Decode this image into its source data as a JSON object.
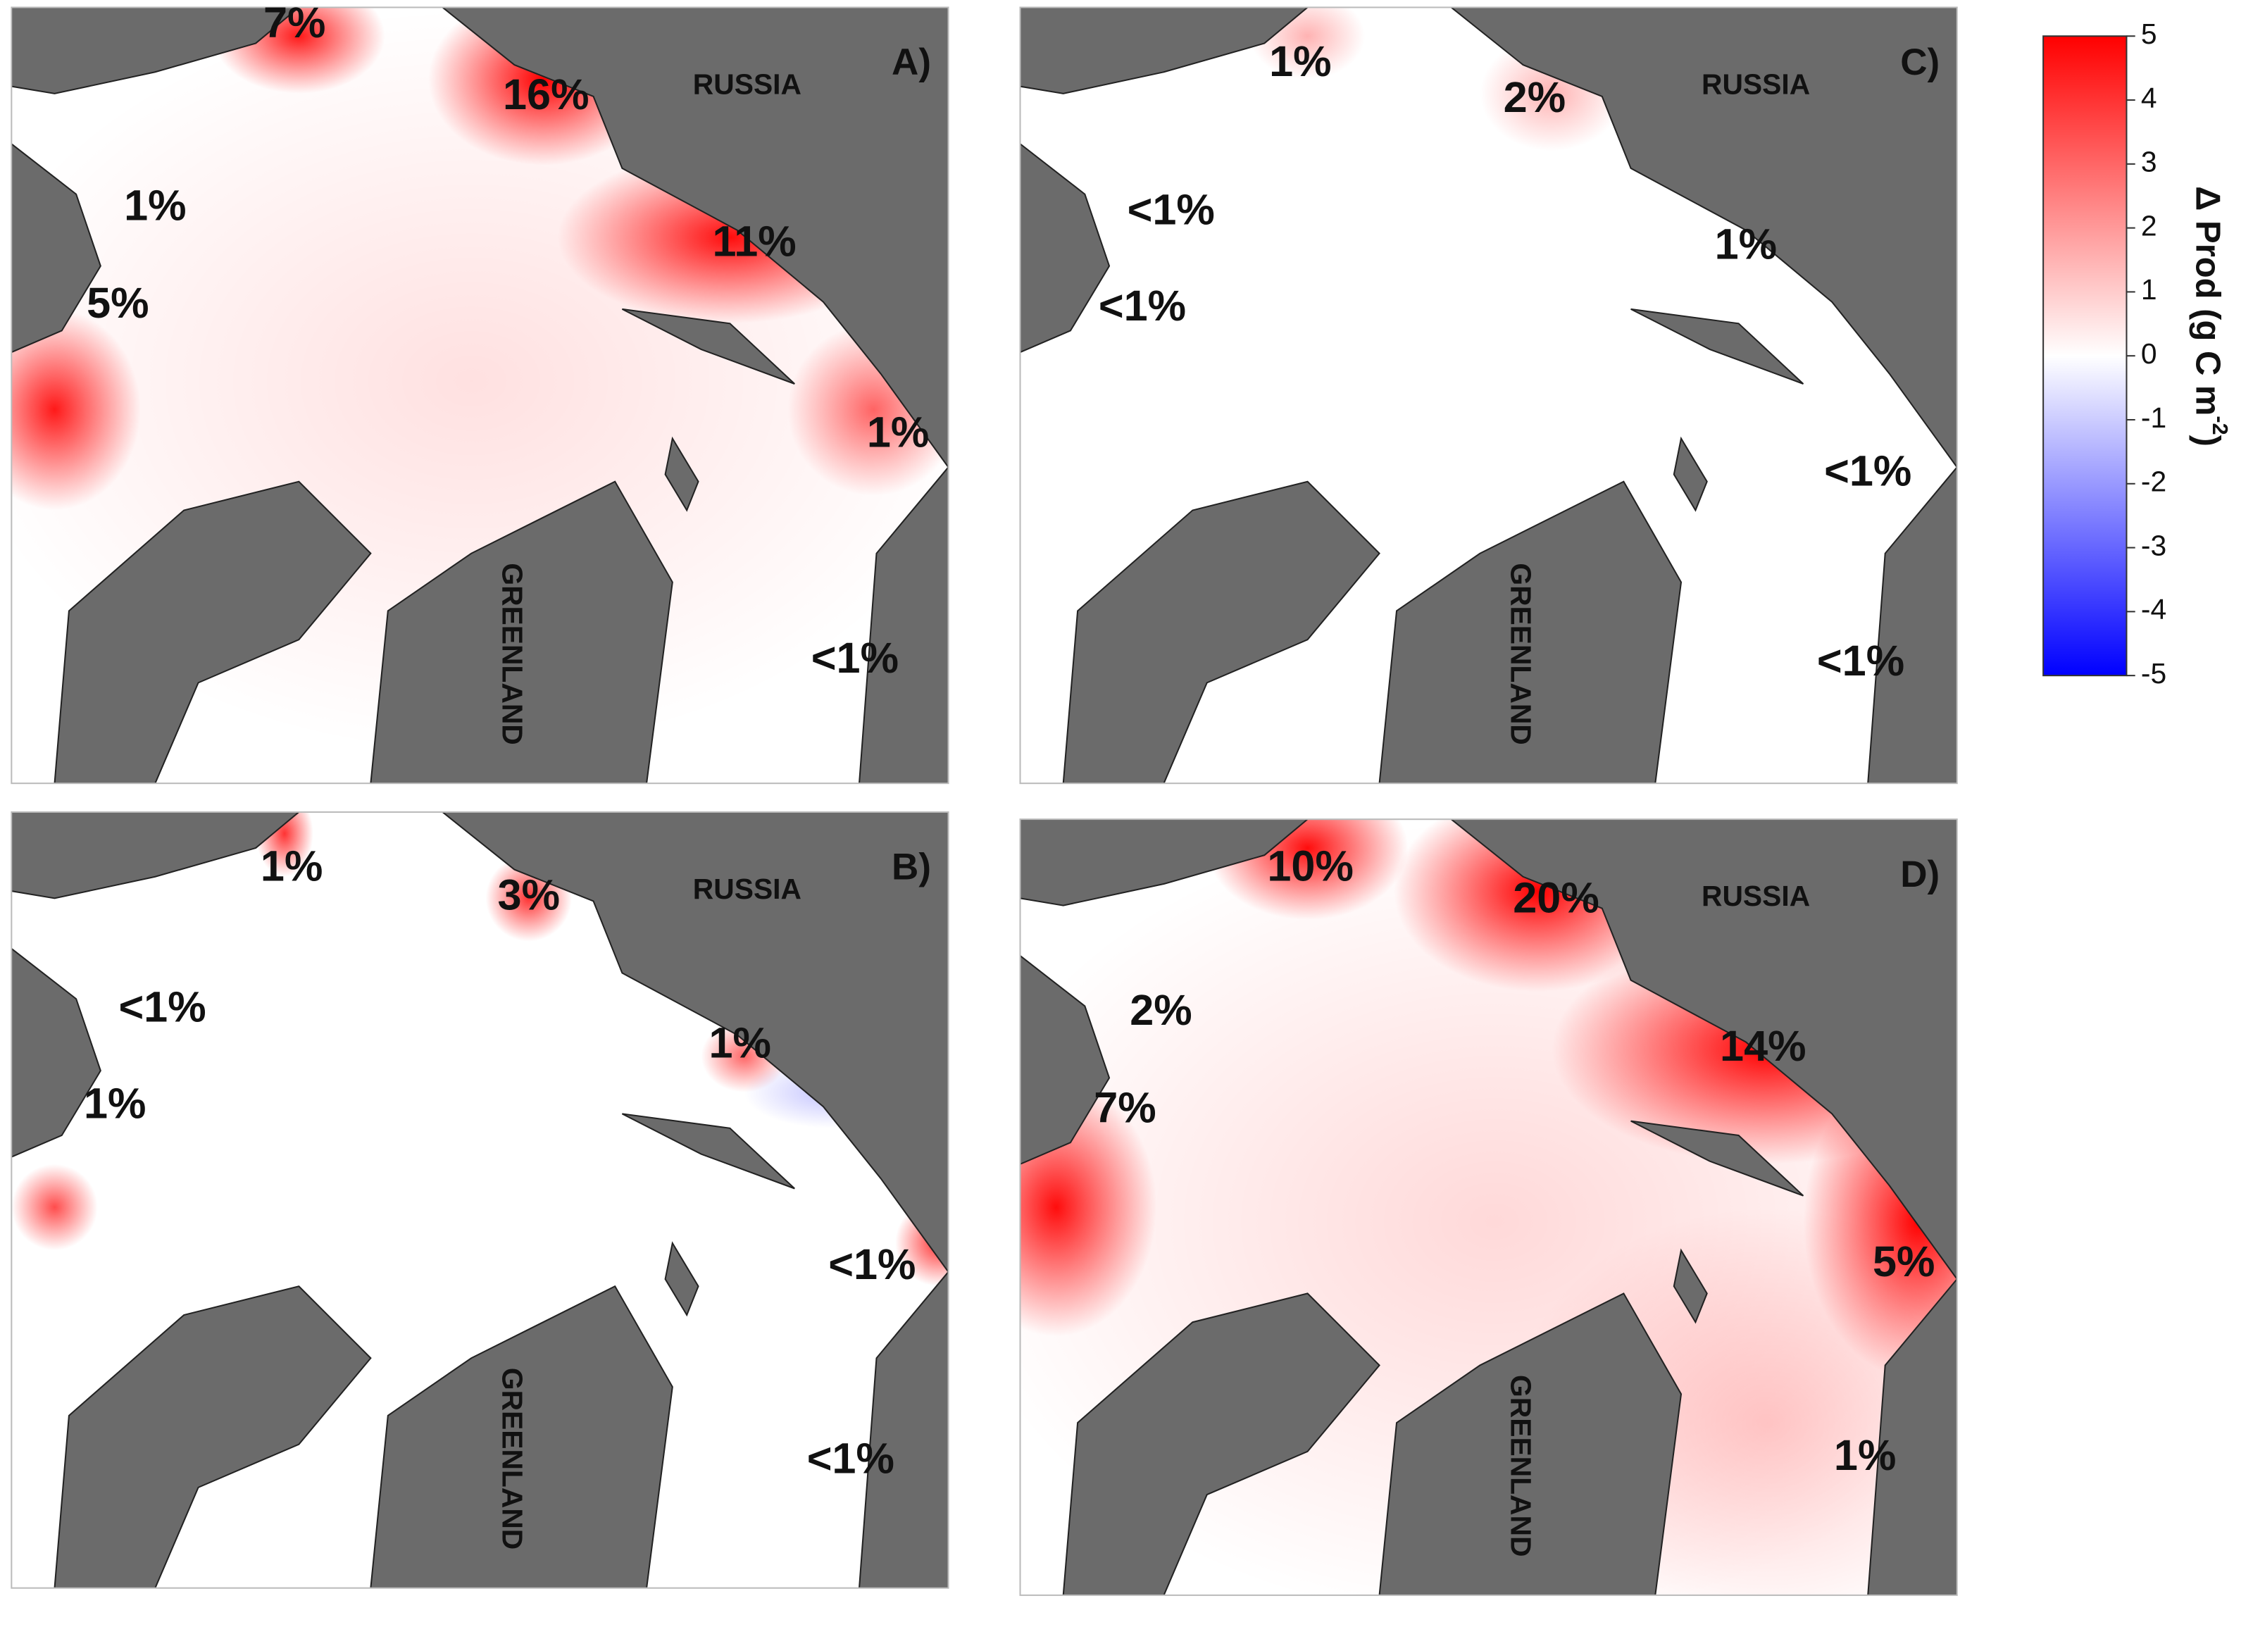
{
  "panels": [
    {
      "letter": "A)",
      "country_labels": [
        "RUSSIA",
        "GREENLAND"
      ],
      "annotations": [
        "7%",
        "16%",
        "1%",
        "11%",
        "5%",
        "1%",
        "<1%"
      ]
    },
    {
      "letter": "B)",
      "country_labels": [
        "RUSSIA",
        "GREENLAND"
      ],
      "annotations": [
        "1%",
        "3%",
        "<1%",
        "1%",
        "1%",
        "<1%",
        "<1%"
      ]
    },
    {
      "letter": "C)",
      "country_labels": [
        "RUSSIA",
        "GREENLAND"
      ],
      "annotations": [
        "1%",
        "2%",
        "<1%",
        "1%",
        "<1%",
        "<1%",
        "<1%"
      ]
    },
    {
      "letter": "D)",
      "country_labels": [
        "RUSSIA",
        "GREENLAND"
      ],
      "annotations": [
        "10%",
        "20%",
        "2%",
        "14%",
        "7%",
        "5%",
        "1%"
      ]
    }
  ],
  "colorbar": {
    "label": "Δ Prod (g C m",
    "label_superscript": "-2",
    "label_end": ")",
    "lim": [
      -5,
      5
    ],
    "ticks": [
      5,
      4,
      3,
      2,
      1,
      0,
      -1,
      -2,
      -3,
      -4,
      -5
    ]
  }
}
